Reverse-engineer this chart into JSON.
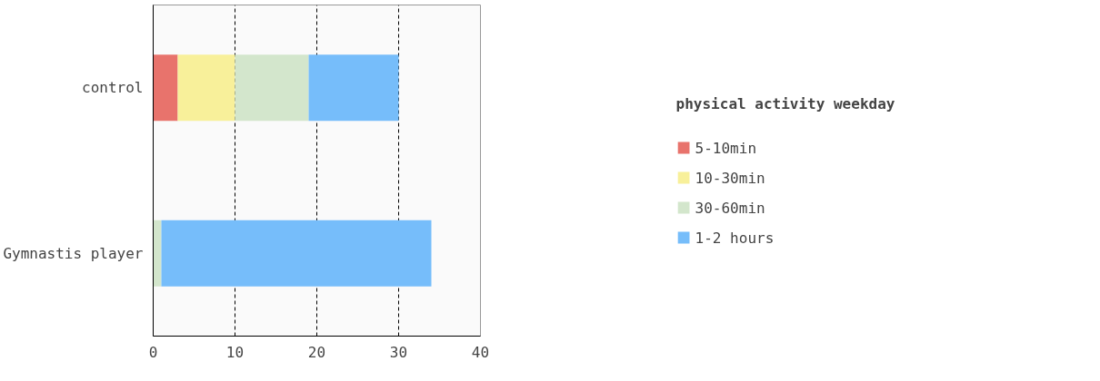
{
  "chart_data": {
    "type": "bar",
    "orientation": "horizontal",
    "stacked": true,
    "categories": [
      "control",
      "Gymnastis player"
    ],
    "legend_title": "physical activity weekday",
    "series": [
      {
        "name": "5-10min",
        "color": "#e8736c",
        "values": [
          3,
          0
        ]
      },
      {
        "name": "10-30min",
        "color": "#f8f09a",
        "values": [
          7,
          0
        ]
      },
      {
        "name": "30-60min",
        "color": "#d3e6cc",
        "values": [
          9,
          1
        ]
      },
      {
        "name": "1-2 hours",
        "color": "#76bdfa",
        "values": [
          11,
          33
        ]
      }
    ],
    "xlim": [
      0,
      40
    ],
    "xticks": [
      0,
      10,
      20,
      30,
      40
    ],
    "grid": "x",
    "legend": "right"
  }
}
